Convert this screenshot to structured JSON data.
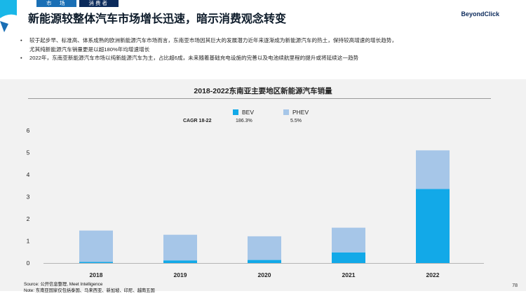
{
  "header": {
    "tabs": [
      "市　场",
      "消费者"
    ],
    "title": "新能源较整体汽车市场增长迅速，暗示消费观念转变",
    "logo": "BeyondClick"
  },
  "bullets": [
    "较于起步早、标准高、体系成熟的欧洲新能源汽车市场而言，东南亚市场因其巨大的发展潜力近年来逐渐成为新能源汽车的热土，保持较高增速的增长趋势，",
    "尤其纯新能源汽车销量更是以超180%年均增速增长",
    "2022年，东南亚新能源汽车市场以纯新能源汽车为主，占比超6成，未来随着基础充电设施的完善以及电池续航里程的提升或将延续这一趋势"
  ],
  "chart_data": {
    "type": "bar",
    "stacked": true,
    "title": "2018-2022东南亚主要地区新能源汽车销量",
    "categories": [
      "2018",
      "2019",
      "2020",
      "2021",
      "2022"
    ],
    "series": [
      {
        "name": "BEV",
        "color": "#12a9e8",
        "values": [
          0.05,
          0.12,
          0.14,
          0.48,
          3.35
        ]
      },
      {
        "name": "PHEV",
        "color": "#a6c6e8",
        "values": [
          1.42,
          1.16,
          1.07,
          1.12,
          1.75
        ]
      }
    ],
    "yticks": [
      0,
      1,
      2,
      3,
      4,
      5,
      6
    ],
    "ylim": [
      0,
      6
    ],
    "legend_position": "top-center",
    "grid": false,
    "cagr": {
      "label": "CAGR 18-22",
      "values": [
        "186.3%",
        "5.5%"
      ]
    }
  },
  "footer": {
    "source": "Source: 公开信息整理, Meet Intelligence",
    "note": "Note: 东南亚国家仅包括泰国、马来西亚、新加坡、印尼、越南五国"
  },
  "page_number": "78"
}
